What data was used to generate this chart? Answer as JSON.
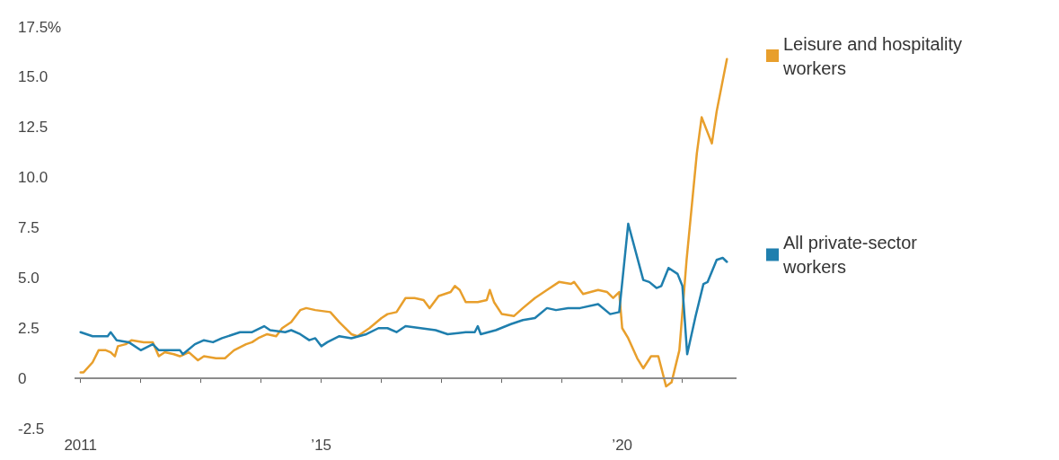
{
  "chart_data": {
    "type": "line",
    "x": [
      2011.0,
      2011.2,
      2011.45,
      2011.5,
      2011.6,
      2011.8,
      2012.0,
      2012.2,
      2012.3,
      2012.45,
      2012.65,
      2012.7,
      2012.9,
      2013.05,
      2013.2,
      2013.35,
      2013.65,
      2013.85,
      2014.05,
      2014.15,
      2014.4,
      2014.5,
      2014.65,
      2014.8,
      2014.9,
      2015.0,
      2015.1,
      2015.3,
      2015.5,
      2015.75,
      2015.95,
      2016.1,
      2016.25,
      2016.4,
      2016.65,
      2016.9,
      2017.1,
      2017.4,
      2017.55,
      2017.6,
      2017.65,
      2017.9,
      2018.15,
      2018.35,
      2018.55,
      2018.75,
      2018.9,
      2019.1,
      2019.3,
      2019.6,
      2019.8,
      2019.95,
      2020.1,
      2020.35,
      2020.45,
      2020.57,
      2020.65,
      2020.77,
      2020.92,
      2021.0,
      2021.08,
      2021.22,
      2021.35,
      2021.42,
      2021.57,
      2021.67,
      2021.74
    ],
    "series": [
      {
        "name": "Leisure and hospitality workers",
        "color": "#e89f2c",
        "x": [
          2011.0,
          2011.05,
          2011.2,
          2011.3,
          2011.42,
          2011.5,
          2011.57,
          2011.62,
          2011.75,
          2011.85,
          2012.05,
          2012.2,
          2012.3,
          2012.4,
          2012.55,
          2012.65,
          2012.8,
          2012.95,
          2013.05,
          2013.25,
          2013.4,
          2013.55,
          2013.75,
          2013.85,
          2013.95,
          2014.1,
          2014.25,
          2014.35,
          2014.5,
          2014.65,
          2014.75,
          2014.9,
          2015.15,
          2015.3,
          2015.5,
          2015.6,
          2015.8,
          2016.0,
          2016.1,
          2016.25,
          2016.4,
          2016.55,
          2016.7,
          2016.8,
          2016.95,
          2017.15,
          2017.22,
          2017.3,
          2017.4,
          2017.6,
          2017.75,
          2017.8,
          2017.87,
          2018.0,
          2018.2,
          2018.35,
          2018.55,
          2018.75,
          2018.95,
          2019.15,
          2019.2,
          2019.35,
          2019.6,
          2019.75,
          2019.85,
          2019.95,
          2020.0,
          2020.1,
          2020.25,
          2020.35,
          2020.48,
          2020.6,
          2020.73,
          2020.82,
          2020.95,
          2021.07,
          2021.24,
          2021.32,
          2021.49,
          2021.57,
          2021.74
        ],
        "values": [
          0.3,
          0.3,
          0.8,
          1.4,
          1.4,
          1.3,
          1.1,
          1.6,
          1.7,
          1.9,
          1.8,
          1.8,
          1.1,
          1.3,
          1.2,
          1.1,
          1.3,
          0.9,
          1.1,
          1.0,
          1.0,
          1.4,
          1.7,
          1.8,
          2.0,
          2.2,
          2.1,
          2.5,
          2.8,
          3.4,
          3.5,
          3.4,
          3.3,
          2.8,
          2.2,
          2.1,
          2.5,
          3.0,
          3.2,
          3.3,
          4.0,
          4.0,
          3.9,
          3.5,
          4.1,
          4.3,
          4.6,
          4.4,
          3.8,
          3.8,
          3.9,
          4.4,
          3.8,
          3.2,
          3.1,
          3.5,
          4.0,
          4.4,
          4.8,
          4.7,
          4.8,
          4.2,
          4.4,
          4.3,
          4.0,
          4.3,
          2.5,
          2.0,
          1.0,
          0.5,
          1.1,
          1.1,
          -0.4,
          -0.2,
          1.4,
          5.9,
          11.2,
          13.0,
          11.7,
          13.3,
          15.9
        ]
      },
      {
        "name": "All private-sector workers",
        "color": "#1f7fae",
        "values": [
          2.3,
          2.1,
          2.1,
          2.3,
          1.9,
          1.8,
          1.4,
          1.7,
          1.4,
          1.4,
          1.4,
          1.2,
          1.7,
          1.9,
          1.8,
          2.0,
          2.3,
          2.3,
          2.6,
          2.4,
          2.3,
          2.4,
          2.2,
          1.9,
          2.0,
          1.6,
          1.8,
          2.1,
          2.0,
          2.2,
          2.5,
          2.5,
          2.3,
          2.6,
          2.5,
          2.4,
          2.2,
          2.3,
          2.3,
          2.6,
          2.2,
          2.4,
          2.7,
          2.9,
          3.0,
          3.5,
          3.4,
          3.5,
          3.5,
          3.7,
          3.2,
          3.3,
          7.7,
          4.9,
          4.8,
          4.5,
          4.6,
          5.5,
          5.2,
          4.6,
          1.2,
          3.1,
          4.7,
          4.8,
          5.9,
          6.0,
          5.8
        ]
      }
    ],
    "xlim": [
      2010.9,
      2021.9
    ],
    "xticks": [
      {
        "value": 2011,
        "label": "2011"
      },
      {
        "value": 2012,
        "label": null
      },
      {
        "value": 2013,
        "label": null
      },
      {
        "value": 2014,
        "label": null
      },
      {
        "value": 2015,
        "label": "’15"
      },
      {
        "value": 2016,
        "label": null
      },
      {
        "value": 2017,
        "label": null
      },
      {
        "value": 2018,
        "label": null
      },
      {
        "value": 2019,
        "label": null
      },
      {
        "value": 2020,
        "label": "’20"
      },
      {
        "value": 2021,
        "label": null
      }
    ],
    "ylim": [
      -2.5,
      17.5
    ],
    "yticks": [
      -2.5,
      {
        "value": 0,
        "label": "0"
      },
      2.5,
      {
        "value": 5,
        "label": "5.0"
      },
      7.5,
      {
        "value": 10,
        "label": "10.0"
      },
      12.5,
      {
        "value": 15,
        "label": "15.0"
      },
      {
        "value": 17.5,
        "label": "17.5%"
      }
    ],
    "ref_lines": [
      {
        "axis": "y",
        "value": 0,
        "color": "#8c8c8c"
      }
    ],
    "legend": "right",
    "line_style": "solid"
  }
}
